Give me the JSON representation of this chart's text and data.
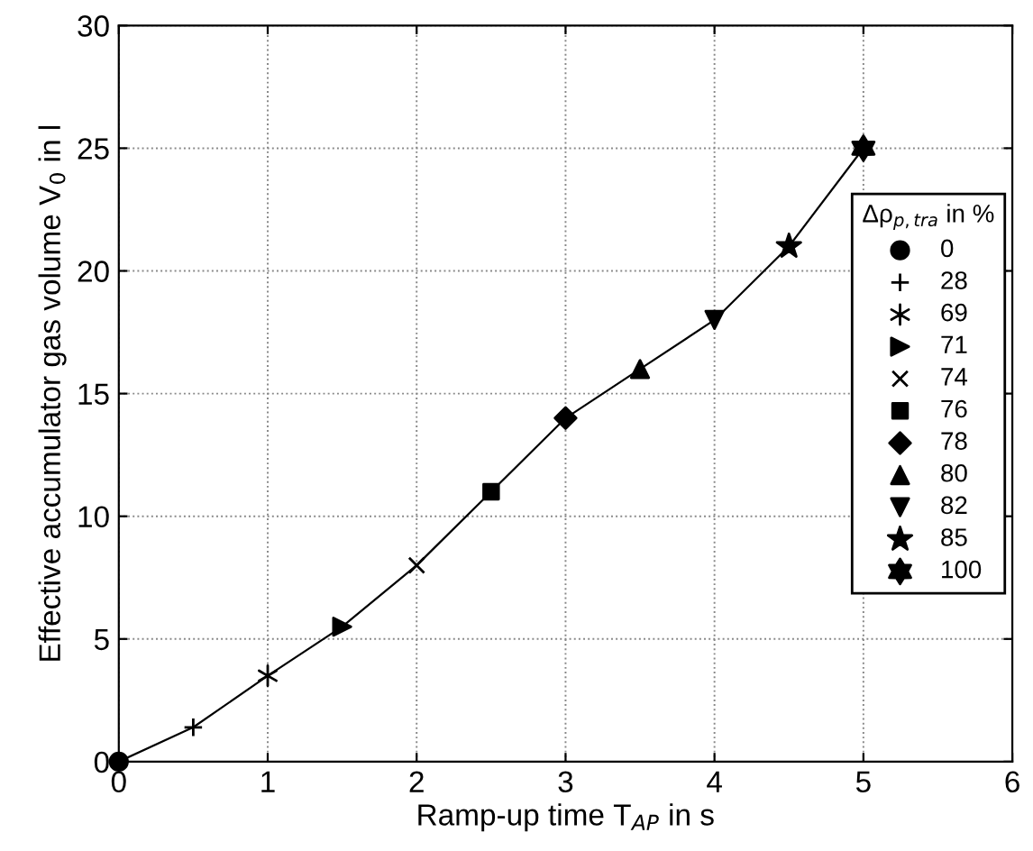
{
  "chart_data": {
    "type": "line",
    "xlabel": "Ramp-up time T$_{AP}$ in s",
    "ylabel": "Effective accumulator gas volume V$_{0}$ in l",
    "legend_title": "Δρ$_{p,tra}$ in %",
    "xlim": [
      0,
      6
    ],
    "ylim": [
      0,
      30
    ],
    "xticks": [
      0,
      1,
      2,
      3,
      4,
      5,
      6
    ],
    "yticks": [
      0,
      5,
      10,
      15,
      20,
      25,
      30
    ],
    "grid": true,
    "legend": "right",
    "line_style": "solid",
    "series": [
      {
        "color": "#000000",
        "marker": "none",
        "x": [
          0,
          0.5,
          1,
          1.5,
          2,
          2.5,
          3,
          3.5,
          4,
          4.5,
          5
        ],
        "values": [
          0,
          1.4,
          3.5,
          5.5,
          8,
          11,
          14,
          16,
          18,
          21,
          25
        ]
      },
      {
        "type": "scatter",
        "name": "0",
        "color": "#000000",
        "marker": "circle",
        "x": [
          0
        ],
        "values": [
          0
        ]
      },
      {
        "type": "scatter",
        "name": "28",
        "color": "#000000",
        "marker": "cross",
        "x": [
          0.5
        ],
        "values": [
          1.4
        ]
      },
      {
        "type": "scatter",
        "name": "69",
        "color": "#000000",
        "x": [
          1
        ],
        "values": [
          3.5
        ]
      },
      {
        "type": "scatter",
        "name": "71",
        "color": "#000000",
        "marker": "triangle",
        "x": [
          1.5
        ],
        "values": [
          5.5
        ]
      },
      {
        "type": "scatter",
        "name": "74",
        "color": "#000000",
        "marker": "cross",
        "x": [
          2
        ],
        "values": [
          8
        ]
      },
      {
        "type": "scatter",
        "name": "76",
        "color": "#000000",
        "marker": "square",
        "x": [
          2.5
        ],
        "values": [
          11
        ]
      },
      {
        "type": "scatter",
        "name": "78",
        "color": "#000000",
        "marker": "diamond",
        "x": [
          3
        ],
        "values": [
          14
        ]
      },
      {
        "type": "scatter",
        "name": "80",
        "color": "#000000",
        "marker": "triangle",
        "x": [
          3.5
        ],
        "values": [
          16
        ]
      },
      {
        "type": "scatter",
        "name": "82",
        "color": "#000000",
        "marker": "triangle",
        "x": [
          4
        ],
        "values": [
          18
        ]
      },
      {
        "type": "scatter",
        "name": "85",
        "color": "#000000",
        "marker": "star",
        "x": [
          4.5
        ],
        "values": [
          21
        ]
      },
      {
        "type": "scatter",
        "name": "100",
        "color": "#000000",
        "x": [
          5
        ],
        "values": [
          25
        ]
      }
    ]
  }
}
